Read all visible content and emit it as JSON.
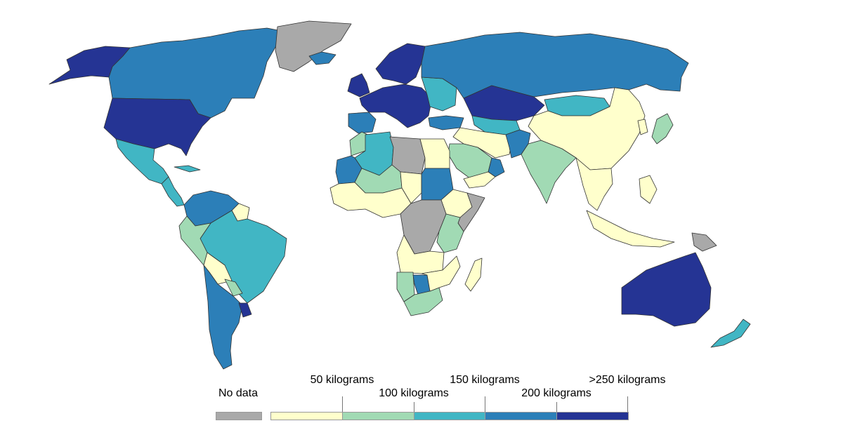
{
  "legend": {
    "no_data": {
      "label": "No data",
      "color": "#a9a9a9"
    },
    "bins": [
      {
        "color": "#ffffcc"
      },
      {
        "color": "#a1dab4"
      },
      {
        "color": "#41b6c4"
      },
      {
        "color": "#2c7fb8"
      },
      {
        "color": "#253494"
      }
    ],
    "thresholds": [
      {
        "label": "50 kilograms"
      },
      {
        "label": "100 kilograms"
      },
      {
        "label": "150 kilograms"
      },
      {
        "label": "200 kilograms"
      },
      {
        "label": ">250 kilograms"
      }
    ]
  },
  "regions": [
    {
      "name": "alaska",
      "bin": 4
    },
    {
      "name": "canada",
      "bin": 3
    },
    {
      "name": "greenland",
      "bin": "nodata"
    },
    {
      "name": "usa",
      "bin": 4
    },
    {
      "name": "mexico",
      "bin": 2
    },
    {
      "name": "central-america",
      "bin": 2
    },
    {
      "name": "cuba",
      "bin": 2
    },
    {
      "name": "colombia-venezuela",
      "bin": 3
    },
    {
      "name": "guianas",
      "bin": 0
    },
    {
      "name": "brazil",
      "bin": 2
    },
    {
      "name": "peru",
      "bin": 1
    },
    {
      "name": "bolivia",
      "bin": 0
    },
    {
      "name": "paraguay",
      "bin": 1
    },
    {
      "name": "argentina-chile",
      "bin": 3
    },
    {
      "name": "uruguay",
      "bin": 4
    },
    {
      "name": "iceland",
      "bin": 3
    },
    {
      "name": "scandinavia",
      "bin": 4
    },
    {
      "name": "uk-ireland",
      "bin": 4
    },
    {
      "name": "western-europe",
      "bin": 4
    },
    {
      "name": "iberia",
      "bin": 3
    },
    {
      "name": "eastern-europe",
      "bin": 2
    },
    {
      "name": "russia",
      "bin": 3
    },
    {
      "name": "kazakhstan",
      "bin": 4
    },
    {
      "name": "mongolia",
      "bin": 2
    },
    {
      "name": "china",
      "bin": 0
    },
    {
      "name": "turkey",
      "bin": 3
    },
    {
      "name": "central-asia",
      "bin": 2
    },
    {
      "name": "iran-middle-east",
      "bin": 0
    },
    {
      "name": "pakistan-afghanistan",
      "bin": 3
    },
    {
      "name": "india",
      "bin": 1
    },
    {
      "name": "southeast-asia",
      "bin": 0
    },
    {
      "name": "japan",
      "bin": 1
    },
    {
      "name": "korea",
      "bin": 0
    },
    {
      "name": "saudi-arabia",
      "bin": 1
    },
    {
      "name": "oman",
      "bin": 3
    },
    {
      "name": "yemen",
      "bin": 0
    },
    {
      "name": "indonesia",
      "bin": 0
    },
    {
      "name": "philippines",
      "bin": 0
    },
    {
      "name": "papua-new-guinea",
      "bin": "nodata"
    },
    {
      "name": "australia",
      "bin": 4
    },
    {
      "name": "new-zealand",
      "bin": 2
    },
    {
      "name": "morocco",
      "bin": 1
    },
    {
      "name": "algeria",
      "bin": 2
    },
    {
      "name": "libya",
      "bin": "nodata"
    },
    {
      "name": "egypt",
      "bin": 0
    },
    {
      "name": "mauritania",
      "bin": 3
    },
    {
      "name": "mali-niger",
      "bin": 1
    },
    {
      "name": "chad",
      "bin": 0
    },
    {
      "name": "sudan",
      "bin": 3
    },
    {
      "name": "ethiopia",
      "bin": 0
    },
    {
      "name": "somalia",
      "bin": "nodata"
    },
    {
      "name": "west-africa",
      "bin": 0
    },
    {
      "name": "central-africa",
      "bin": "nodata"
    },
    {
      "name": "kenya-tanzania",
      "bin": 1
    },
    {
      "name": "angola-zambia",
      "bin": 0
    },
    {
      "name": "namibia",
      "bin": 1
    },
    {
      "name": "botswana",
      "bin": 3
    },
    {
      "name": "south-africa",
      "bin": 1
    },
    {
      "name": "mozambique",
      "bin": 0
    },
    {
      "name": "madagascar",
      "bin": 0
    }
  ]
}
